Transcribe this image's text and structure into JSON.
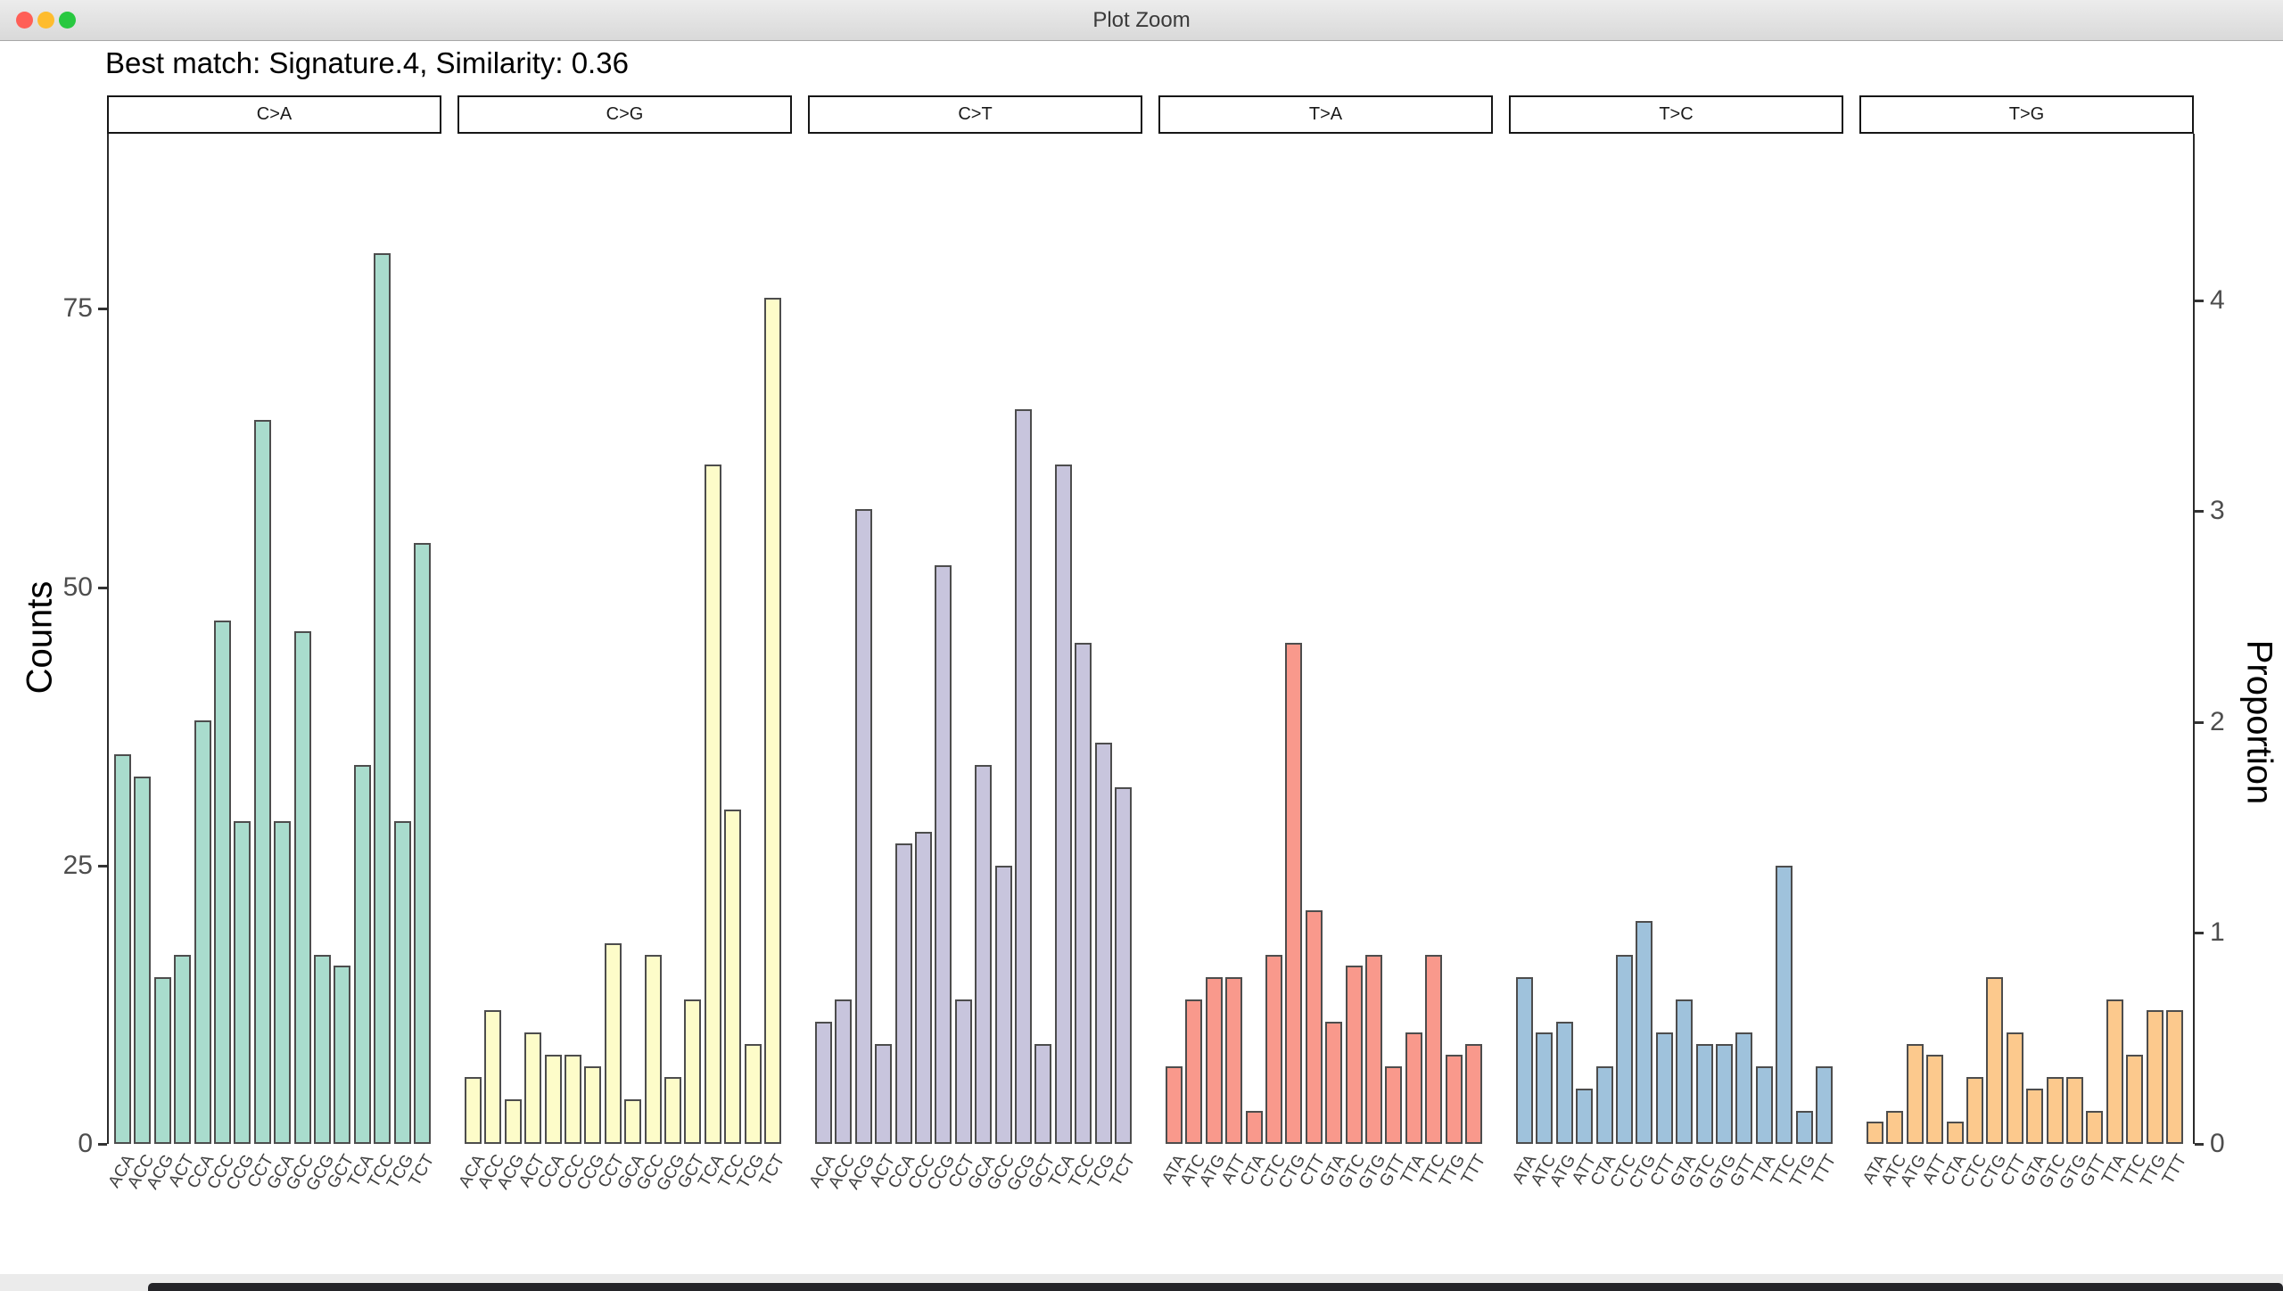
{
  "window": {
    "title": "Plot Zoom",
    "traffic_lights": {
      "close": "#ff5f57",
      "minimize": "#febc2e",
      "zoom": "#28c840"
    }
  },
  "heading": "Best match: Signature.4, Similarity: 0.36",
  "chart_data": {
    "type": "bar",
    "title": "Best match: Signature.4, Similarity: 0.36",
    "xlabel": "",
    "ylabel_left": "Counts",
    "ylabel_right": "Proportion",
    "ylim_counts": [
      0,
      90
    ],
    "ylim_proportion": [
      0,
      4
    ],
    "left_ticks": [
      0,
      25,
      50,
      75
    ],
    "right_ticks": [
      0,
      1,
      2,
      3,
      4
    ],
    "grid": "off",
    "legend": "none",
    "bar_border_color": "#4d4d4d",
    "facets": [
      {
        "label": "C>A",
        "color": "#a9dccd",
        "contexts": [
          "ACA",
          "ACC",
          "ACG",
          "ACT",
          "CCA",
          "CCC",
          "CCG",
          "CCT",
          "GCA",
          "GCC",
          "GCG",
          "GCT",
          "TCA",
          "TCC",
          "TCG",
          "TCT"
        ],
        "values": [
          35,
          33,
          15,
          17,
          38,
          47,
          29,
          65,
          29,
          46,
          17,
          16,
          34,
          80,
          29,
          54
        ]
      },
      {
        "label": "C>G",
        "color": "#fdfcc9",
        "contexts": [
          "ACA",
          "ACC",
          "ACG",
          "ACT",
          "CCA",
          "CCC",
          "CCG",
          "CCT",
          "GCA",
          "GCC",
          "GCG",
          "GCT",
          "TCA",
          "TCC",
          "TCG",
          "TCT"
        ],
        "values": [
          6,
          12,
          4,
          10,
          8,
          8,
          7,
          18,
          4,
          17,
          6,
          13,
          61,
          30,
          9,
          76
        ]
      },
      {
        "label": "C>T",
        "color": "#c8c5dd",
        "contexts": [
          "ACA",
          "ACC",
          "ACG",
          "ACT",
          "CCA",
          "CCC",
          "CCG",
          "CCT",
          "GCA",
          "GCC",
          "GCG",
          "GCT",
          "TCA",
          "TCC",
          "TCG",
          "TCT"
        ],
        "values": [
          11,
          13,
          57,
          9,
          27,
          28,
          52,
          13,
          34,
          25,
          66,
          9,
          61,
          45,
          36,
          32
        ]
      },
      {
        "label": "T>A",
        "color": "#f9998c",
        "contexts": [
          "ATA",
          "ATC",
          "ATG",
          "ATT",
          "CTA",
          "CTC",
          "CTG",
          "CTT",
          "GTA",
          "GTC",
          "GTG",
          "GTT",
          "TTA",
          "TTC",
          "TTG",
          "TTT"
        ],
        "values": [
          7,
          13,
          15,
          15,
          3,
          17,
          45,
          21,
          11,
          16,
          17,
          7,
          10,
          17,
          8,
          9
        ]
      },
      {
        "label": "T>C",
        "color": "#9fc2dc",
        "contexts": [
          "ATA",
          "ATC",
          "ATG",
          "ATT",
          "CTA",
          "CTC",
          "CTG",
          "CTT",
          "GTA",
          "GTC",
          "GTG",
          "GTT",
          "TTA",
          "TTC",
          "TTG",
          "TTT"
        ],
        "values": [
          15,
          10,
          11,
          5,
          7,
          17,
          20,
          10,
          13,
          9,
          9,
          10,
          7,
          25,
          3,
          7
        ]
      },
      {
        "label": "T>G",
        "color": "#fcc98d",
        "contexts": [
          "ATA",
          "ATC",
          "ATG",
          "ATT",
          "CTA",
          "CTC",
          "CTG",
          "CTT",
          "GTA",
          "GTC",
          "GTG",
          "GTT",
          "TTA",
          "TTC",
          "TTG",
          "TTT"
        ],
        "values": [
          2,
          3,
          9,
          8,
          2,
          6,
          15,
          10,
          5,
          6,
          6,
          3,
          13,
          8,
          12,
          12
        ]
      }
    ]
  }
}
